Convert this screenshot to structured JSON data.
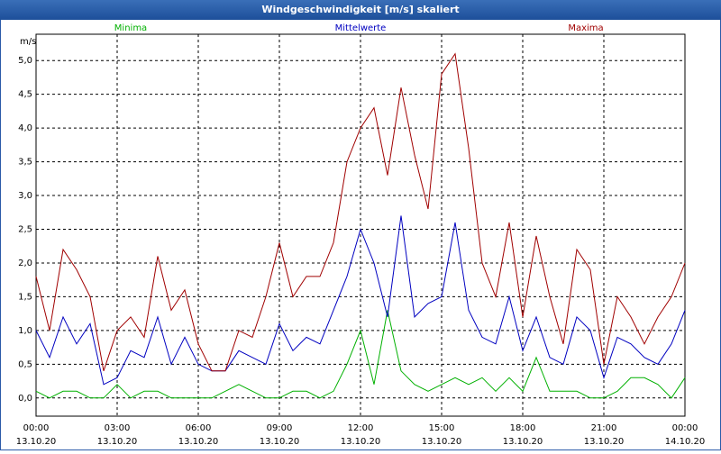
{
  "chart_data": {
    "type": "line",
    "title": "Windgeschwindigkeit [m/s] skaliert",
    "y_unit_label": "m/s",
    "x": [
      0,
      0.5,
      1,
      1.5,
      2,
      2.5,
      3,
      3.5,
      4,
      4.5,
      5,
      5.5,
      6,
      6.5,
      7,
      7.5,
      8,
      8.5,
      9,
      9.5,
      10,
      10.5,
      11,
      11.5,
      12,
      12.5,
      13,
      13.5,
      14,
      14.5,
      15,
      15.5,
      16,
      16.5,
      17,
      17.5,
      18,
      18.5,
      19,
      19.5,
      20,
      20.5,
      21,
      21.5,
      22,
      22.5,
      23,
      23.5,
      24
    ],
    "series": [
      {
        "name": "Minima",
        "color": "#00b000",
        "values": [
          0.1,
          0,
          0.1,
          0.1,
          0,
          0,
          0.2,
          0,
          0.1,
          0.1,
          0,
          0,
          0,
          0,
          0.1,
          0.2,
          0.1,
          0,
          0,
          0.1,
          0.1,
          0,
          0.1,
          0.5,
          1.0,
          0.2,
          1.3,
          0.4,
          0.2,
          0.1,
          0.2,
          0.3,
          0.2,
          0.3,
          0.1,
          0.3,
          0.1,
          0.6,
          0.1,
          0.1,
          0.1,
          0,
          0,
          0.1,
          0.3,
          0.3,
          0.2,
          0,
          0.3
        ]
      },
      {
        "name": "Mittelwerte",
        "color": "#0000c0",
        "values": [
          1.0,
          0.6,
          1.2,
          0.8,
          1.1,
          0.2,
          0.3,
          0.7,
          0.6,
          1.2,
          0.5,
          0.9,
          0.5,
          0.4,
          0.4,
          0.7,
          0.6,
          0.5,
          1.1,
          0.7,
          0.9,
          0.8,
          1.3,
          1.8,
          2.5,
          2.0,
          1.2,
          2.7,
          1.2,
          1.4,
          1.5,
          2.6,
          1.3,
          0.9,
          0.8,
          1.5,
          0.7,
          1.2,
          0.6,
          0.5,
          1.2,
          1.0,
          0.3,
          0.9,
          0.8,
          0.6,
          0.5,
          0.8,
          1.3
        ]
      },
      {
        "name": "Maxima",
        "color": "#a00000",
        "values": [
          1.8,
          1.0,
          2.2,
          1.9,
          1.5,
          0.4,
          1.0,
          1.2,
          0.9,
          2.1,
          1.3,
          1.6,
          0.8,
          0.4,
          0.4,
          1.0,
          0.9,
          1.5,
          2.3,
          1.5,
          1.8,
          1.8,
          2.3,
          3.5,
          4.0,
          4.3,
          3.3,
          4.6,
          3.6,
          2.8,
          4.8,
          5.1,
          3.7,
          2.0,
          1.5,
          2.6,
          1.2,
          2.4,
          1.5,
          0.8,
          2.2,
          1.9,
          0.5,
          1.5,
          1.2,
          0.8,
          1.2,
          1.5,
          2.0
        ]
      }
    ],
    "xlim": [
      0,
      24
    ],
    "xticks": [
      {
        "value": 0,
        "label": "00:00"
      },
      {
        "value": 3,
        "label": "03:00"
      },
      {
        "value": 6,
        "label": "06:00"
      },
      {
        "value": 9,
        "label": "09:00"
      },
      {
        "value": 12,
        "label": "12:00"
      },
      {
        "value": 15,
        "label": "15:00"
      },
      {
        "value": 18,
        "label": "18:00"
      },
      {
        "value": 21,
        "label": "21:00"
      },
      {
        "value": 24,
        "label": "00:00"
      }
    ],
    "xtick_dates": [
      "13.10.20",
      "13.10.20",
      "13.10.20",
      "13.10.20",
      "13.10.20",
      "13.10.20",
      "13.10.20",
      "13.10.20",
      "14.10.20"
    ],
    "ylim": [
      -0.27,
      5.39
    ],
    "yticks": [
      {
        "value": 0,
        "label": "0,0"
      },
      {
        "value": 0.5,
        "label": "0,5"
      },
      {
        "value": 1,
        "label": "1,0"
      },
      {
        "value": 1.5,
        "label": "1,5"
      },
      {
        "value": 2,
        "label": "2,0"
      },
      {
        "value": 2.5,
        "label": "2,5"
      },
      {
        "value": 3,
        "label": "3,0"
      },
      {
        "value": 3.5,
        "label": "3,5"
      },
      {
        "value": 4,
        "label": "4,0"
      },
      {
        "value": 4.5,
        "label": "4,5"
      },
      {
        "value": 5,
        "label": "5,0"
      }
    ],
    "grid": true
  }
}
